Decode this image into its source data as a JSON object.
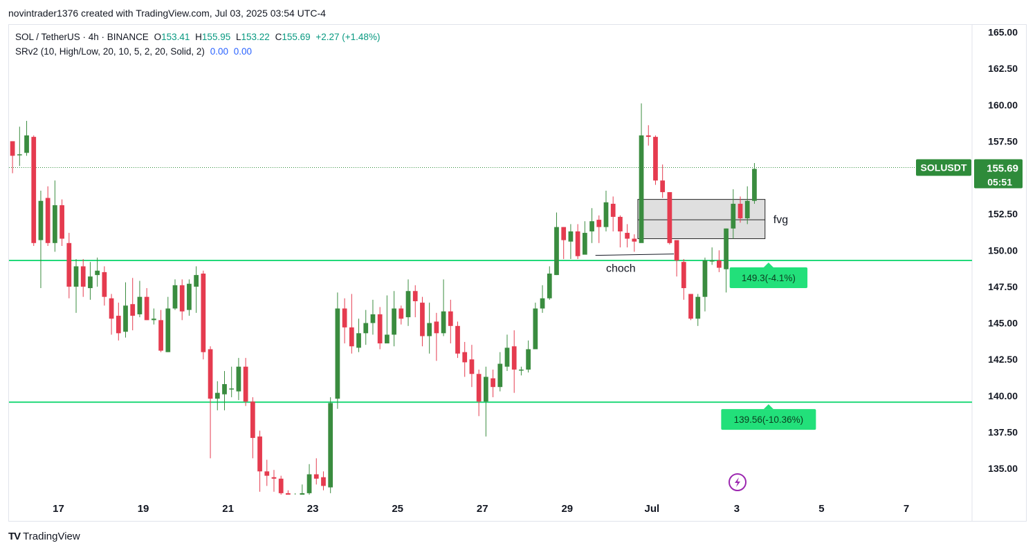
{
  "header": {
    "credit": "novintrader1376 created with TradingView.com, Jul 03, 2025 03:54 UTC-4"
  },
  "legend": {
    "symbol": "SOL / TetherUS · 4h · BINANCE",
    "open_label": "O",
    "open": "153.41",
    "high_label": "H",
    "high": "155.95",
    "low_label": "L",
    "low": "153.22",
    "close_label": "C",
    "close": "155.69",
    "change": "+2.27 (+1.48%)",
    "indicator": "SRv2 (10, High/Low, 20, 10, 5, 2, 20, Solid, 2)",
    "indicator_val1": "0.00",
    "indicator_val2": "0.00"
  },
  "footer": {
    "logo_text": "TradingView",
    "logo_mark": "TV"
  },
  "colors": {
    "up": "#3a8c3f",
    "down": "#e53b4f",
    "level_line": "#22d97a",
    "label_bg": "#22e07a",
    "price_tag": "#2e8b3a",
    "fvg_fill": "#d9d9d9",
    "grid": "#f0f3fa"
  },
  "chart_data": {
    "type": "candlestick",
    "symbol": "SOLUSDT",
    "timeframe": "4h",
    "ylim": [
      133.2,
      165.5
    ],
    "y_ticks": [
      "165.00",
      "162.50",
      "160.00",
      "157.50",
      "155.00",
      "152.50",
      "150.00",
      "147.50",
      "145.00",
      "142.50",
      "140.00",
      "137.50",
      "135.00"
    ],
    "x_ticks": [
      {
        "label": "17",
        "index": 6.5
      },
      {
        "label": "19",
        "index": 18.5
      },
      {
        "label": "21",
        "index": 30.5
      },
      {
        "label": "23",
        "index": 42.5
      },
      {
        "label": "25",
        "index": 54.5
      },
      {
        "label": "27",
        "index": 66.5
      },
      {
        "label": "29",
        "index": 78.5
      },
      {
        "label": "Jul",
        "index": 90.5
      },
      {
        "label": "3",
        "index": 102.5
      },
      {
        "label": "5",
        "index": 114.5
      },
      {
        "label": "7",
        "index": 126.5
      }
    ],
    "x_range": [
      -0.5,
      135.8
    ],
    "candles": [
      [
        157.5,
        156.5,
        157.5,
        155.3
      ],
      [
        156.6,
        156.6,
        158.5,
        155.8
      ],
      [
        156.7,
        157.9,
        158.9,
        156.5
      ],
      [
        157.8,
        150.5,
        157.9,
        150.3
      ],
      [
        150.7,
        153.4,
        154.1,
        147.4
      ],
      [
        153.6,
        150.5,
        154.4,
        150.3
      ],
      [
        150.5,
        153.1,
        154.8,
        149.9
      ],
      [
        153.1,
        150.8,
        153.5,
        150.3
      ],
      [
        150.5,
        147.5,
        151.2,
        146.7
      ],
      [
        147.5,
        148.9,
        149.4,
        145.7
      ],
      [
        148.9,
        147.5,
        149.4,
        146.8
      ],
      [
        147.4,
        148.2,
        149.2,
        146.6
      ],
      [
        148.3,
        148.6,
        149.5,
        147.5
      ],
      [
        148.5,
        146.8,
        148.9,
        146.2
      ],
      [
        146.7,
        145.3,
        147.0,
        144.2
      ],
      [
        145.5,
        144.3,
        146.4,
        143.8
      ],
      [
        144.4,
        146.2,
        147.8,
        144.0
      ],
      [
        146.3,
        145.5,
        148.1,
        144.5
      ],
      [
        145.6,
        146.8,
        147.9,
        145.4
      ],
      [
        146.8,
        145.2,
        147.4,
        145.2
      ],
      [
        145.2,
        145.3,
        146.0,
        144.9
      ],
      [
        145.2,
        143.1,
        145.9,
        143.0
      ],
      [
        143.0,
        146.0,
        146.8,
        143.0
      ],
      [
        146.0,
        147.6,
        148.0,
        145.9
      ],
      [
        147.6,
        145.8,
        148.0,
        145.2
      ],
      [
        145.9,
        147.7,
        148.0,
        145.5
      ],
      [
        147.5,
        148.3,
        148.9,
        145.7
      ],
      [
        148.4,
        143.0,
        148.6,
        142.5
      ],
      [
        143.2,
        139.8,
        143.4,
        135.7
      ],
      [
        139.8,
        140.2,
        141.0,
        139.0
      ],
      [
        140.1,
        140.8,
        141.7,
        139.0
      ],
      [
        140.5,
        140.5,
        142.0,
        139.9
      ],
      [
        140.3,
        142.0,
        142.6,
        139.7
      ],
      [
        142.0,
        139.6,
        142.6,
        139.3
      ],
      [
        139.6,
        137.1,
        139.9,
        135.7
      ],
      [
        137.2,
        134.8,
        137.6,
        133.4
      ],
      [
        134.8,
        134.5,
        135.6,
        133.8
      ],
      [
        134.4,
        134.3,
        134.9,
        133.4
      ],
      [
        134.3,
        133.3,
        134.5,
        133.2
      ],
      [
        133.3,
        133.2,
        133.5,
        133.1
      ],
      [
        133.2,
        133.2,
        133.3,
        133.1
      ],
      [
        133.2,
        133.3,
        133.9,
        133.1
      ],
      [
        133.3,
        134.6,
        135.3,
        133.2
      ],
      [
        134.6,
        134.3,
        135.7,
        133.9
      ],
      [
        134.4,
        133.8,
        134.8,
        133.5
      ],
      [
        133.7,
        139.5,
        139.9,
        133.3
      ],
      [
        139.8,
        146.0,
        147.1,
        139.1
      ],
      [
        146.0,
        144.7,
        146.7,
        143.6
      ],
      [
        144.7,
        143.4,
        147.0,
        142.9
      ],
      [
        143.3,
        144.3,
        145.3,
        143.0
      ],
      [
        144.3,
        145.0,
        145.9,
        143.5
      ],
      [
        145.0,
        145.6,
        146.6,
        144.2
      ],
      [
        145.6,
        143.6,
        146.1,
        143.2
      ],
      [
        143.6,
        144.2,
        146.9,
        143.7
      ],
      [
        144.2,
        146.0,
        147.2,
        143.4
      ],
      [
        146.0,
        145.3,
        146.2,
        144.9
      ],
      [
        145.4,
        147.2,
        148.0,
        144.8
      ],
      [
        147.2,
        146.5,
        147.6,
        145.4
      ],
      [
        146.4,
        144.1,
        146.8,
        143.4
      ],
      [
        144.1,
        145.0,
        146.4,
        142.9
      ],
      [
        145.1,
        144.3,
        145.7,
        142.4
      ],
      [
        144.3,
        145.8,
        148.0,
        144.1
      ],
      [
        145.8,
        144.8,
        146.6,
        143.6
      ],
      [
        144.8,
        142.9,
        145.1,
        142.6
      ],
      [
        143.0,
        142.3,
        143.7,
        141.3
      ],
      [
        142.5,
        141.5,
        143.5,
        140.6
      ],
      [
        141.5,
        139.6,
        141.8,
        138.6
      ],
      [
        139.6,
        141.3,
        142.0,
        137.2
      ],
      [
        141.2,
        140.6,
        141.8,
        139.9
      ],
      [
        140.6,
        142.2,
        143.0,
        140.3
      ],
      [
        142.0,
        143.3,
        144.2,
        141.7
      ],
      [
        143.4,
        141.8,
        144.5,
        140.2
      ],
      [
        141.8,
        141.8,
        142.0,
        141.4
      ],
      [
        141.8,
        143.2,
        143.8,
        141.6
      ],
      [
        143.2,
        146.0,
        146.4,
        143.3
      ],
      [
        146.0,
        146.7,
        147.6,
        145.7
      ],
      [
        146.7,
        148.4,
        148.9,
        146.6
      ],
      [
        148.3,
        151.6,
        152.6,
        148.3
      ],
      [
        151.6,
        150.7,
        151.6,
        149.4
      ],
      [
        150.6,
        151.3,
        151.8,
        149.4
      ],
      [
        151.3,
        149.6,
        151.8,
        149.4
      ],
      [
        149.7,
        151.2,
        152.0,
        149.8
      ],
      [
        151.3,
        152.0,
        152.9,
        150.5
      ],
      [
        152.1,
        151.6,
        152.4,
        150.5
      ],
      [
        151.6,
        153.3,
        154.1,
        151.3
      ],
      [
        153.2,
        152.3,
        153.7,
        151.3
      ],
      [
        152.3,
        151.3,
        152.4,
        150.2
      ],
      [
        151.2,
        150.8,
        151.8,
        150.2
      ],
      [
        150.8,
        150.6,
        151.1,
        149.9
      ],
      [
        150.5,
        157.9,
        160.1,
        150.6
      ],
      [
        157.9,
        157.8,
        158.6,
        157.2
      ],
      [
        157.8,
        154.8,
        157.9,
        154.5
      ],
      [
        154.8,
        154.0,
        155.9,
        153.6
      ],
      [
        154.0,
        150.5,
        154.0,
        150.4
      ],
      [
        150.7,
        149.3,
        150.5,
        148.2
      ],
      [
        149.2,
        147.4,
        149.4,
        146.6
      ],
      [
        147.0,
        145.3,
        147.0,
        145.2
      ],
      [
        145.3,
        146.8,
        147.0,
        144.8
      ],
      [
        146.8,
        149.3,
        149.5,
        145.8
      ],
      [
        149.3,
        149.3,
        150.2,
        149.0
      ],
      [
        149.3,
        148.8,
        150.0,
        148.5
      ],
      [
        148.7,
        151.5,
        151.5,
        147.1
      ],
      [
        151.5,
        153.2,
        154.2,
        150.8
      ],
      [
        153.2,
        152.2,
        153.7,
        151.9
      ],
      [
        152.2,
        153.4,
        154.4,
        151.8
      ],
      [
        153.4,
        155.6,
        156.0,
        153.2
      ]
    ],
    "levels": [
      {
        "value": 149.3,
        "label": "149.3(-4.1%)",
        "label_index": 107
      },
      {
        "value": 139.56,
        "label": "139.56(-10.36%)",
        "label_index": 107
      }
    ],
    "fvg": {
      "label": "fvg",
      "top": 153.5,
      "mid": 152.1,
      "bottom": 150.8,
      "from_index": 88.5,
      "to_index": 106.5
    },
    "choch": {
      "label": "choch",
      "value": 149.7,
      "from_index": 82.5,
      "to_index": 93.6
    },
    "last_price": {
      "symbol_label": "SOLUSDT",
      "price": "155.69",
      "countdown": "05:51",
      "value": 155.69
    }
  }
}
